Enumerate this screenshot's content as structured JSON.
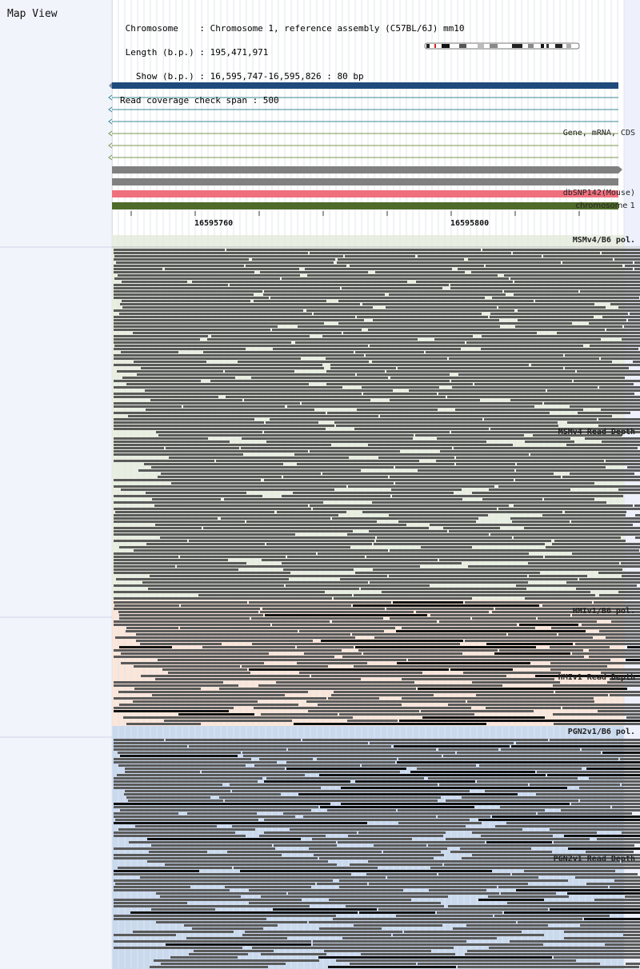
{
  "map": {
    "title": "Map View",
    "info_lines": [
      " Chromosome    : Chromosome 1, reference assembly (C57BL/6J) mm10",
      " Length (b.p.) : 195,471,971",
      "   Show (b.p.) : 16,595,747-16,595,826 : 80 bp",
      "Read coverage check span : 500"
    ]
  },
  "tracks": {
    "gene_label": "Gene, mRNA, CDS",
    "snp_label": "dbSNP142(Mouse)",
    "chromosome_label": "chromosome 1"
  },
  "ruler": {
    "tick_1": "16595760",
    "tick_2": "16595800"
  },
  "panels": {
    "msm_pol": "MSMv4/B6 pol.",
    "msm_depth": "MSMv4 Read Depth",
    "hmi_pol": "HMIv1/B6 pol.",
    "hmi_depth": "HMIv1 Read Depth",
    "pgn_pol": "PGN2v1/B6 pol.",
    "pgn_depth": "PGN2v1 Read Depth"
  },
  "colors": {
    "gene_bar": "#1f4a7c",
    "snp_bar": "#ef6f7d",
    "chromosome_bar": "#4f6a2a",
    "msm_bg": "#e9efe0",
    "hmi_bg": "#fbe6d9",
    "pgn_bg": "#c9d9ee",
    "read": "#5a5a5a"
  }
}
